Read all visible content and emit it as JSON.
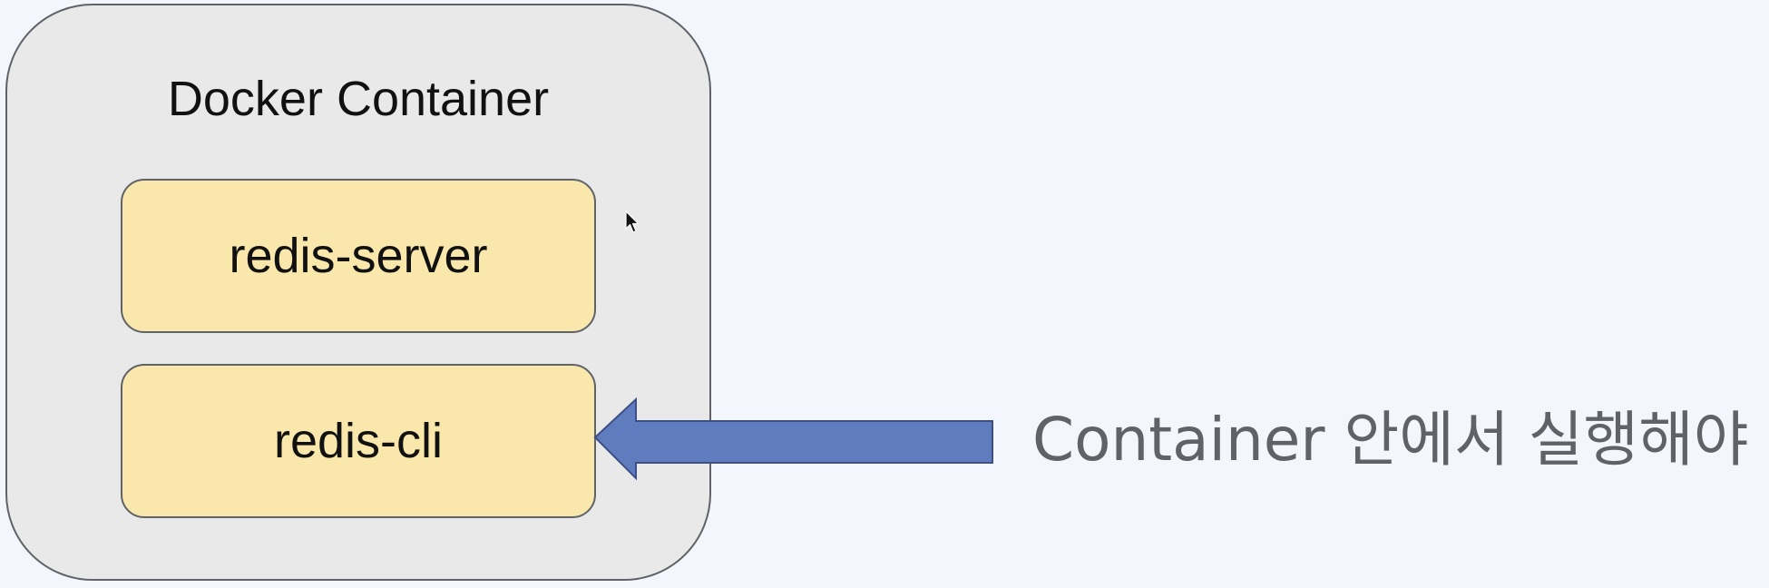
{
  "diagram": {
    "container": {
      "title": "Docker Container"
    },
    "processes": [
      {
        "label": "redis-server"
      },
      {
        "label": "redis-cli"
      }
    ],
    "annotation": {
      "text": "Container 안에서 실행해야"
    },
    "colors": {
      "background": "#f3f6fd",
      "container_fill": "#e9e9ea",
      "process_fill": "#f9e7ac",
      "border": "#5f6368",
      "arrow_fill": "#5f7cbf",
      "annotation_text": "#5f6368"
    },
    "icons": {
      "arrow": "left-arrow-icon",
      "cursor": "mouse-pointer-icon"
    }
  }
}
